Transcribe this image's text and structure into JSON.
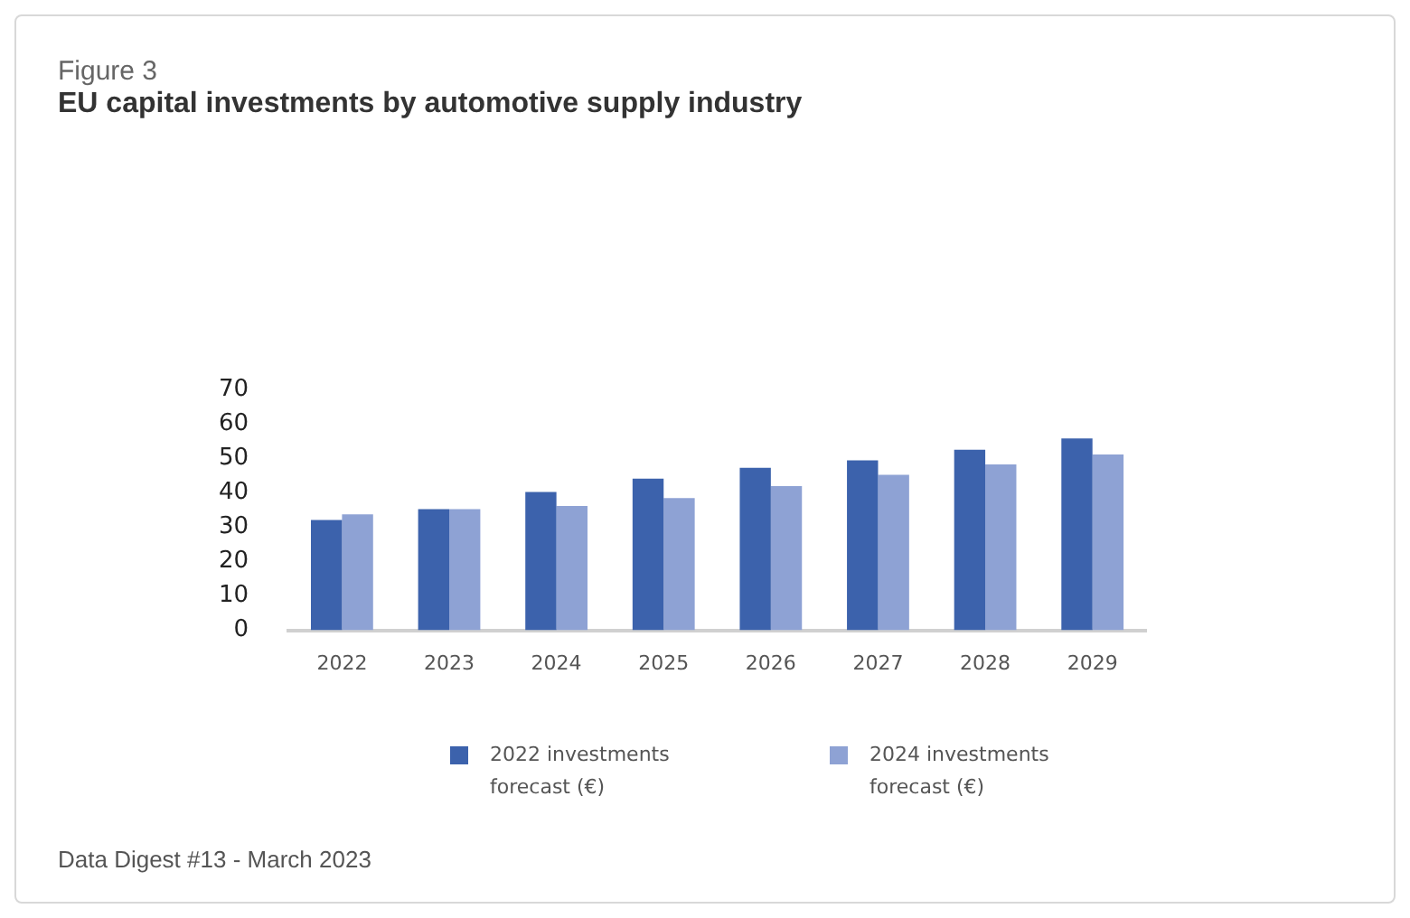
{
  "chart_data": {
    "type": "bar",
    "title": "EU capital investments by automotive supply industry",
    "annotations": [
      "Figure 3",
      "Data Digest #13 - March 2023"
    ],
    "categories": [
      "2022",
      "2023",
      "2024",
      "2025",
      "2026",
      "2027",
      "2028",
      "2029"
    ],
    "series": [
      {
        "name": "2022 investments forecast (€)",
        "color": "#3c62ac",
        "values": [
          32.1,
          35.3,
          40.3,
          44.2,
          47.3,
          49.5,
          52.6,
          55.9
        ]
      },
      {
        "name": "2024 investments forecast (€)",
        "color": "#8ea2d4",
        "values": [
          33.8,
          35.3,
          36.2,
          38.5,
          42,
          45.3,
          48.3,
          51.2
        ]
      }
    ],
    "ylim": [
      0,
      70
    ],
    "yticks": [
      0,
      10,
      20,
      30,
      40,
      50,
      60,
      70
    ],
    "grid": false,
    "legend": "bottom"
  }
}
